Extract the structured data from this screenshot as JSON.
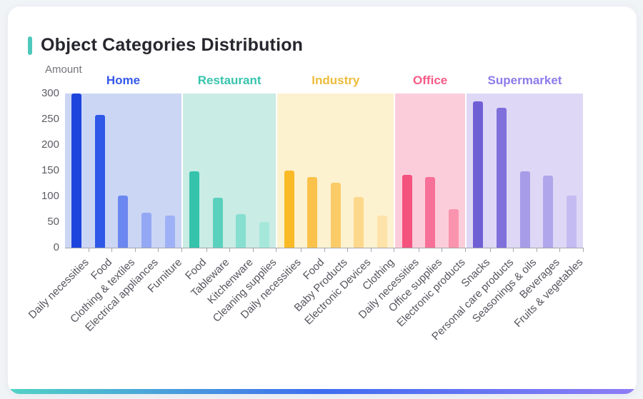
{
  "card": {
    "title": "Object Categories Distribution",
    "accent_color": "#4ec8bc",
    "footer_gradient": [
      "#52d3c5",
      "#3f6df0",
      "#8f7df5"
    ]
  },
  "chart_data": {
    "type": "bar",
    "title": "Object Categories Distribution",
    "xlabel": "",
    "ylabel": "Amount",
    "ylim": [
      0,
      300
    ],
    "yticks": [
      0,
      50,
      100,
      150,
      200,
      250,
      300
    ],
    "grid": false,
    "legend_position": "none",
    "groups": [
      {
        "name": "Home",
        "label_color": "#3558e8",
        "band_color": "#cbd6f5",
        "items": [
          {
            "label": "Daily necessities",
            "value": 300,
            "color": "#1d44dd"
          },
          {
            "label": "Food",
            "value": 258,
            "color": "#2f58e8"
          },
          {
            "label": "Clothing & textiles",
            "value": 102,
            "color": "#6b87f0"
          },
          {
            "label": "Electrical appliances",
            "value": 68,
            "color": "#93a7f4"
          },
          {
            "label": "Furniture",
            "value": 63,
            "color": "#9fb1f6"
          }
        ]
      },
      {
        "name": "Restaurant",
        "label_color": "#38c3ae",
        "band_color": "#c9ece5",
        "items": [
          {
            "label": "Food",
            "value": 148,
            "color": "#35c3ac"
          },
          {
            "label": "Tableware",
            "value": 97,
            "color": "#5ad1bd"
          },
          {
            "label": "Kitchenware",
            "value": 65,
            "color": "#86dfd0"
          },
          {
            "label": "Cleaning supplies",
            "value": 50,
            "color": "#a5e8db"
          }
        ]
      },
      {
        "name": "Industry",
        "label_color": "#eebc3c",
        "band_color": "#fdf2cf",
        "items": [
          {
            "label": "Daily necessities",
            "value": 150,
            "color": "#f9ba25"
          },
          {
            "label": "Food",
            "value": 138,
            "color": "#fac24a"
          },
          {
            "label": "Baby Products",
            "value": 126,
            "color": "#fbcb68"
          },
          {
            "label": "Electronic Devices",
            "value": 99,
            "color": "#fcd88d"
          },
          {
            "label": "Clothing",
            "value": 62,
            "color": "#fde2a9"
          }
        ]
      },
      {
        "name": "Office",
        "label_color": "#f45b86",
        "band_color": "#fbcdda",
        "items": [
          {
            "label": "Daily necessities",
            "value": 142,
            "color": "#f4537e"
          },
          {
            "label": "Office supplies",
            "value": 138,
            "color": "#f77097"
          },
          {
            "label": "Electronic products",
            "value": 75,
            "color": "#fa94ae"
          }
        ]
      },
      {
        "name": "Supermarket",
        "label_color": "#8d7bea",
        "band_color": "#ded8f6",
        "items": [
          {
            "label": "Snacks",
            "value": 285,
            "color": "#6f5fd5"
          },
          {
            "label": "Personal care products",
            "value": 272,
            "color": "#7f70dc"
          },
          {
            "label": "Seasonings & oils",
            "value": 148,
            "color": "#a79ce8"
          },
          {
            "label": "Beverages",
            "value": 140,
            "color": "#b0a6eb"
          },
          {
            "label": "Fruits & vegetables",
            "value": 101,
            "color": "#c3bbf1"
          }
        ]
      }
    ]
  }
}
